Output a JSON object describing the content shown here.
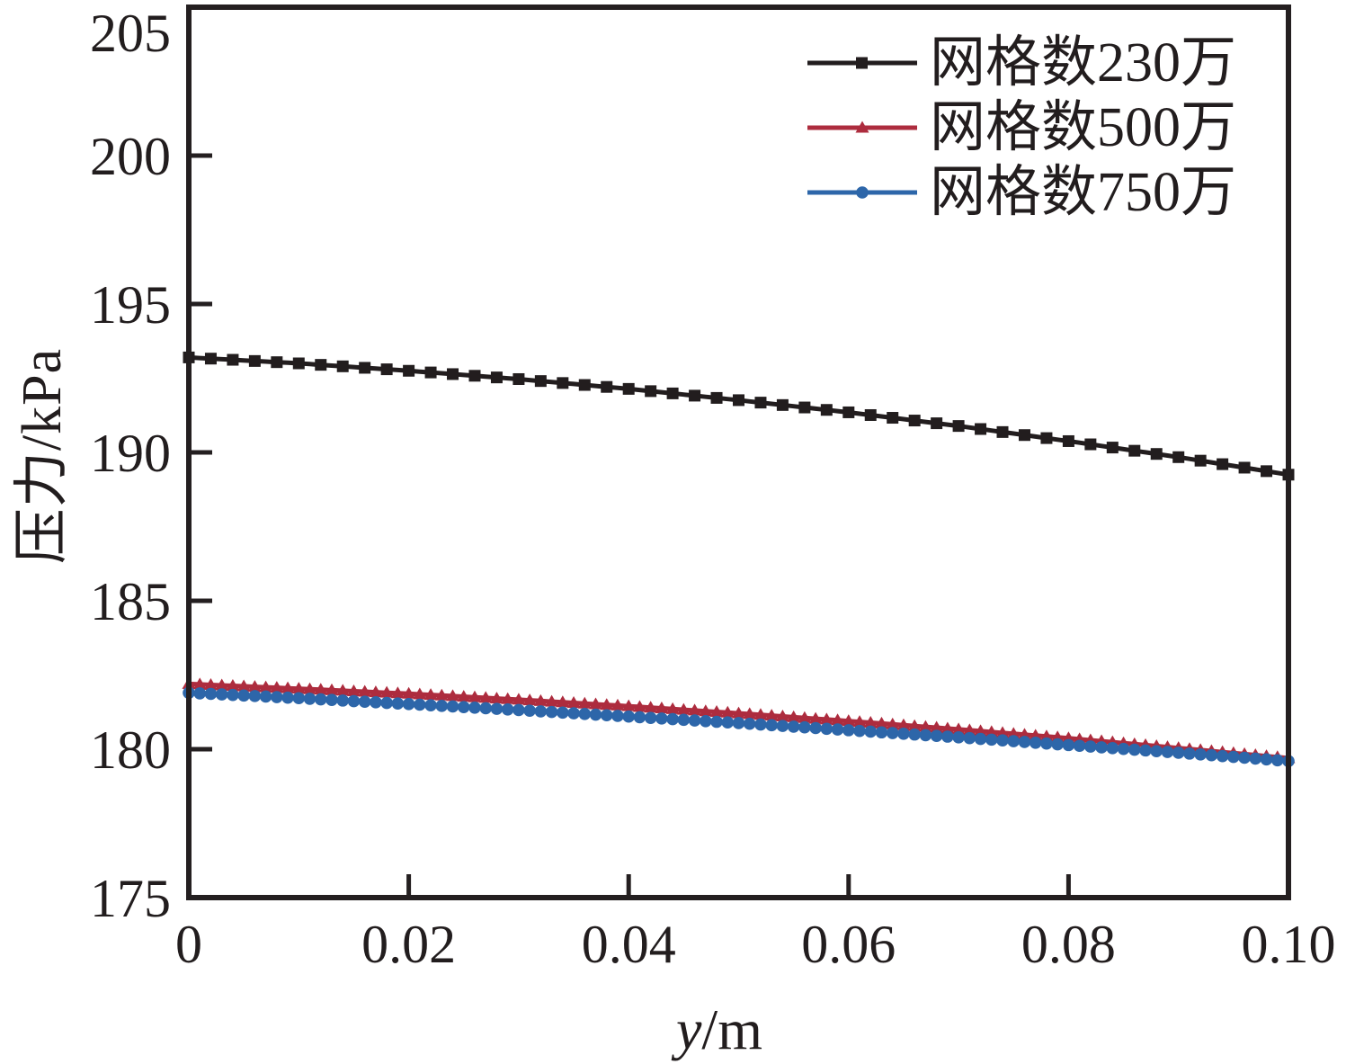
{
  "chart": {
    "xlabel_var": "y",
    "xlabel_unit": "/m",
    "frame_color": "#241f20",
    "text_color": "#221d1e",
    "background": "#ffffff"
  },
  "chart_data": {
    "type": "line",
    "title": "",
    "xlabel": "y/m",
    "ylabel": "压力/kPa",
    "xlim": [
      0,
      0.1
    ],
    "ylim": [
      175,
      205
    ],
    "grid": false,
    "legend_position": "upper right",
    "x_tick_values": [
      0,
      0.02,
      0.04,
      0.06,
      0.08,
      0.1
    ],
    "x_tick_labels": [
      "0",
      "0.02",
      "0.04",
      "0.06",
      "0.08",
      "0.10"
    ],
    "y_tick_values": [
      175,
      180,
      185,
      190,
      195,
      200,
      205
    ],
    "y_tick_labels": [
      "175",
      "180",
      "185",
      "190",
      "195",
      "200",
      "205"
    ],
    "x": [
      0,
      0.01,
      0.02,
      0.03,
      0.04,
      0.05,
      0.06,
      0.07,
      0.08,
      0.09,
      0.1
    ],
    "series": [
      {
        "name": "网格数230万",
        "color": "#221d1e",
        "marker": "square",
        "marker_step": 0.002,
        "values": [
          193.2,
          193.0,
          192.75,
          192.47,
          192.14,
          191.76,
          191.35,
          190.89,
          190.38,
          189.84,
          189.25
        ]
      },
      {
        "name": "网格数500万",
        "color": "#ad2c3e",
        "marker": "triangle",
        "marker_step": 0.001,
        "values": [
          182.2,
          182.04,
          181.87,
          181.67,
          181.45,
          181.21,
          180.95,
          180.67,
          180.37,
          180.04,
          179.7
        ]
      },
      {
        "name": "网格数750万",
        "color": "#2d66a9",
        "marker": "circle",
        "marker_step": 0.001,
        "values": [
          181.9,
          181.72,
          181.52,
          181.32,
          181.1,
          180.88,
          180.64,
          180.4,
          180.14,
          179.88,
          179.6
        ]
      }
    ]
  }
}
